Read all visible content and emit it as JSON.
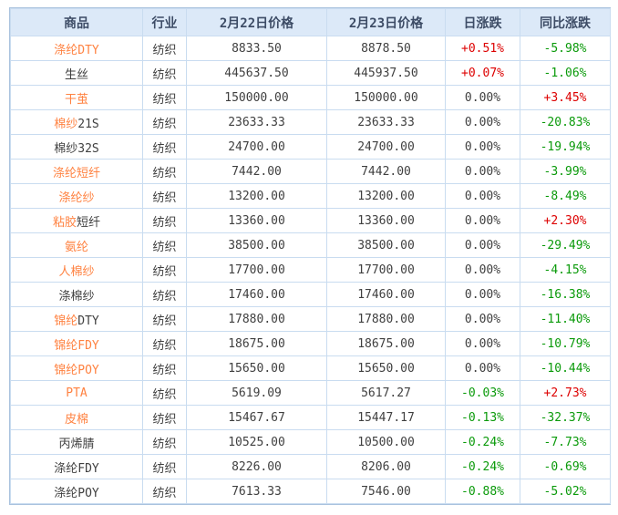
{
  "colors": {
    "orange": "#ff8241",
    "red": "#dd0000",
    "green": "#0a9a0a",
    "dark": "#404040",
    "header_bg": "#dce9f8",
    "header_text": "#3d4c66",
    "border": "#c9dcf0",
    "outer_border": "#a9c2de",
    "page_bg": "#ffffff"
  },
  "table": {
    "headers": [
      "商品",
      "行业",
      "2月22日价格",
      "2月23日价格",
      "日涨跌",
      "同比涨跌"
    ],
    "rows": [
      {
        "name": [
          {
            "t": "涤纶DTY",
            "c": "orange"
          }
        ],
        "industry": "纺织",
        "p22": "8833.50",
        "p23": "8878.50",
        "daily": "+0.51%",
        "daily_c": "red",
        "yoy": "-5.98%",
        "yoy_c": "green"
      },
      {
        "name": [
          {
            "t": "生丝",
            "c": "dark"
          }
        ],
        "industry": "纺织",
        "p22": "445637.50",
        "p23": "445937.50",
        "daily": "+0.07%",
        "daily_c": "red",
        "yoy": "-1.06%",
        "yoy_c": "green"
      },
      {
        "name": [
          {
            "t": "干茧",
            "c": "orange"
          }
        ],
        "industry": "纺织",
        "p22": "150000.00",
        "p23": "150000.00",
        "daily": "0.00%",
        "daily_c": "dark",
        "yoy": "+3.45%",
        "yoy_c": "red"
      },
      {
        "name": [
          {
            "t": "棉纱",
            "c": "orange"
          },
          {
            "t": "21S",
            "c": "dark"
          }
        ],
        "industry": "纺织",
        "p22": "23633.33",
        "p23": "23633.33",
        "daily": "0.00%",
        "daily_c": "dark",
        "yoy": "-20.83%",
        "yoy_c": "green"
      },
      {
        "name": [
          {
            "t": "棉纱32S",
            "c": "dark"
          }
        ],
        "industry": "纺织",
        "p22": "24700.00",
        "p23": "24700.00",
        "daily": "0.00%",
        "daily_c": "dark",
        "yoy": "-19.94%",
        "yoy_c": "green"
      },
      {
        "name": [
          {
            "t": "涤纶短纤",
            "c": "orange"
          }
        ],
        "industry": "纺织",
        "p22": "7442.00",
        "p23": "7442.00",
        "daily": "0.00%",
        "daily_c": "dark",
        "yoy": "-3.99%",
        "yoy_c": "green"
      },
      {
        "name": [
          {
            "t": "涤纶纱",
            "c": "orange"
          }
        ],
        "industry": "纺织",
        "p22": "13200.00",
        "p23": "13200.00",
        "daily": "0.00%",
        "daily_c": "dark",
        "yoy": "-8.49%",
        "yoy_c": "green"
      },
      {
        "name": [
          {
            "t": "粘胶",
            "c": "orange"
          },
          {
            "t": "短纤",
            "c": "dark"
          }
        ],
        "industry": "纺织",
        "p22": "13360.00",
        "p23": "13360.00",
        "daily": "0.00%",
        "daily_c": "dark",
        "yoy": "+2.30%",
        "yoy_c": "red"
      },
      {
        "name": [
          {
            "t": "氨纶",
            "c": "orange"
          }
        ],
        "industry": "纺织",
        "p22": "38500.00",
        "p23": "38500.00",
        "daily": "0.00%",
        "daily_c": "dark",
        "yoy": "-29.49%",
        "yoy_c": "green"
      },
      {
        "name": [
          {
            "t": "人棉纱",
            "c": "orange"
          }
        ],
        "industry": "纺织",
        "p22": "17700.00",
        "p23": "17700.00",
        "daily": "0.00%",
        "daily_c": "dark",
        "yoy": "-4.15%",
        "yoy_c": "green"
      },
      {
        "name": [
          {
            "t": "涤棉纱",
            "c": "dark"
          }
        ],
        "industry": "纺织",
        "p22": "17460.00",
        "p23": "17460.00",
        "daily": "0.00%",
        "daily_c": "dark",
        "yoy": "-16.38%",
        "yoy_c": "green"
      },
      {
        "name": [
          {
            "t": "锦纶",
            "c": "orange"
          },
          {
            "t": "DTY",
            "c": "dark"
          }
        ],
        "industry": "纺织",
        "p22": "17880.00",
        "p23": "17880.00",
        "daily": "0.00%",
        "daily_c": "dark",
        "yoy": "-11.40%",
        "yoy_c": "green"
      },
      {
        "name": [
          {
            "t": "锦纶FDY",
            "c": "orange"
          }
        ],
        "industry": "纺织",
        "p22": "18675.00",
        "p23": "18675.00",
        "daily": "0.00%",
        "daily_c": "dark",
        "yoy": "-10.79%",
        "yoy_c": "green"
      },
      {
        "name": [
          {
            "t": "锦纶POY",
            "c": "orange"
          }
        ],
        "industry": "纺织",
        "p22": "15650.00",
        "p23": "15650.00",
        "daily": "0.00%",
        "daily_c": "dark",
        "yoy": "-10.44%",
        "yoy_c": "green"
      },
      {
        "name": [
          {
            "t": "PTA",
            "c": "orange"
          }
        ],
        "industry": "纺织",
        "p22": "5619.09",
        "p23": "5617.27",
        "daily": "-0.03%",
        "daily_c": "green",
        "yoy": "+2.73%",
        "yoy_c": "red"
      },
      {
        "name": [
          {
            "t": "皮棉",
            "c": "orange"
          }
        ],
        "industry": "纺织",
        "p22": "15467.67",
        "p23": "15447.17",
        "daily": "-0.13%",
        "daily_c": "green",
        "yoy": "-32.37%",
        "yoy_c": "green"
      },
      {
        "name": [
          {
            "t": "丙烯腈",
            "c": "dark"
          }
        ],
        "industry": "纺织",
        "p22": "10525.00",
        "p23": "10500.00",
        "daily": "-0.24%",
        "daily_c": "green",
        "yoy": "-7.73%",
        "yoy_c": "green"
      },
      {
        "name": [
          {
            "t": "涤纶FDY",
            "c": "dark"
          }
        ],
        "industry": "纺织",
        "p22": "8226.00",
        "p23": "8206.00",
        "daily": "-0.24%",
        "daily_c": "green",
        "yoy": "-0.69%",
        "yoy_c": "green"
      },
      {
        "name": [
          {
            "t": "涤纶POY",
            "c": "dark"
          }
        ],
        "industry": "纺织",
        "p22": "7613.33",
        "p23": "7546.00",
        "daily": "-0.88%",
        "daily_c": "green",
        "yoy": "-5.02%",
        "yoy_c": "green"
      }
    ]
  },
  "chart_data": {
    "type": "table",
    "columns": [
      "商品",
      "行业",
      "2月22日价格",
      "2月23日价格",
      "日涨跌",
      "同比涨跌"
    ],
    "rows": [
      [
        "涤纶DTY",
        "纺织",
        "8833.50",
        "8878.50",
        "+0.51%",
        "-5.98%"
      ],
      [
        "生丝",
        "纺织",
        "445637.50",
        "445937.50",
        "+0.07%",
        "-1.06%"
      ],
      [
        "干茧",
        "纺织",
        "150000.00",
        "150000.00",
        "0.00%",
        "+3.45%"
      ],
      [
        "棉纱21S",
        "纺织",
        "23633.33",
        "23633.33",
        "0.00%",
        "-20.83%"
      ],
      [
        "棉纱32S",
        "纺织",
        "24700.00",
        "24700.00",
        "0.00%",
        "-19.94%"
      ],
      [
        "涤纶短纤",
        "纺织",
        "7442.00",
        "7442.00",
        "0.00%",
        "-3.99%"
      ],
      [
        "涤纶纱",
        "纺织",
        "13200.00",
        "13200.00",
        "0.00%",
        "-8.49%"
      ],
      [
        "粘胶短纤",
        "纺织",
        "13360.00",
        "13360.00",
        "0.00%",
        "+2.30%"
      ],
      [
        "氨纶",
        "纺织",
        "38500.00",
        "38500.00",
        "0.00%",
        "-29.49%"
      ],
      [
        "人棉纱",
        "纺织",
        "17700.00",
        "17700.00",
        "0.00%",
        "-4.15%"
      ],
      [
        "涤棉纱",
        "纺织",
        "17460.00",
        "17460.00",
        "0.00%",
        "-16.38%"
      ],
      [
        "锦纶DTY",
        "纺织",
        "17880.00",
        "17880.00",
        "0.00%",
        "-11.40%"
      ],
      [
        "锦纶FDY",
        "纺织",
        "18675.00",
        "18675.00",
        "0.00%",
        "-10.79%"
      ],
      [
        "锦纶POY",
        "纺织",
        "15650.00",
        "15650.00",
        "0.00%",
        "-10.44%"
      ],
      [
        "PTA",
        "纺织",
        "5619.09",
        "5617.27",
        "-0.03%",
        "+2.73%"
      ],
      [
        "皮棉",
        "纺织",
        "15467.67",
        "15447.17",
        "-0.13%",
        "-32.37%"
      ],
      [
        "丙烯腈",
        "纺织",
        "10525.00",
        "10500.00",
        "-0.24%",
        "-7.73%"
      ],
      [
        "涤纶FDY",
        "纺织",
        "8226.00",
        "8206.00",
        "-0.24%",
        "-0.69%"
      ],
      [
        "涤纶POY",
        "纺织",
        "7613.33",
        "7546.00",
        "-0.88%",
        "-5.02%"
      ]
    ]
  }
}
